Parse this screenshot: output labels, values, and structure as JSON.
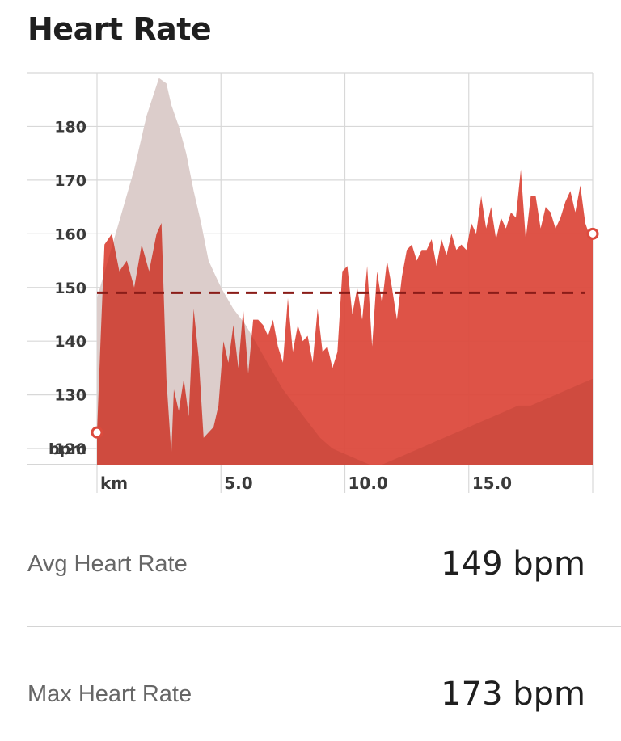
{
  "title": "Heart Rate",
  "stats": {
    "avg_label": "Avg Heart Rate",
    "avg_value": "149 bpm",
    "max_label": "Max Heart Rate",
    "max_value": "173 bpm"
  },
  "colors": {
    "hr_fill": "#dc4a3d",
    "elevation_fill": "#ececec",
    "avg_line": "#8a1c18",
    "grid": "#d8d8d8"
  },
  "chart_data": {
    "type": "area",
    "xlabel": "km",
    "ylabel": "bpm",
    "x_ticks": [
      "5.0",
      "10.0",
      "15.0"
    ],
    "y_ticks": [
      "180",
      "170",
      "160",
      "150",
      "140",
      "130",
      "120"
    ],
    "xlim": [
      0,
      20
    ],
    "ylim": [
      117,
      190
    ],
    "avg_line": 149,
    "series": [
      {
        "role": "heart_rate",
        "x": [
          0,
          0.15,
          0.3,
          0.6,
          0.9,
          1.2,
          1.5,
          1.8,
          2.1,
          2.4,
          2.6,
          2.8,
          3.0,
          3.1,
          3.3,
          3.5,
          3.7,
          3.9,
          4.1,
          4.3,
          4.5,
          4.7,
          4.9,
          5.1,
          5.3,
          5.5,
          5.7,
          5.9,
          6.1,
          6.3,
          6.5,
          6.7,
          6.9,
          7.1,
          7.3,
          7.5,
          7.7,
          7.9,
          8.1,
          8.3,
          8.5,
          8.7,
          8.9,
          9.1,
          9.3,
          9.5,
          9.7,
          9.9,
          10.1,
          10.3,
          10.5,
          10.7,
          10.9,
          11.1,
          11.3,
          11.5,
          11.7,
          11.9,
          12.1,
          12.3,
          12.5,
          12.7,
          12.9,
          13.1,
          13.3,
          13.5,
          13.7,
          13.9,
          14.1,
          14.3,
          14.5,
          14.7,
          14.9,
          15.1,
          15.3,
          15.5,
          15.7,
          15.9,
          16.1,
          16.3,
          16.5,
          16.7,
          16.9,
          17.1,
          17.3,
          17.5,
          17.7,
          17.9,
          18.1,
          18.3,
          18.5,
          18.7,
          18.9,
          19.1,
          19.3,
          19.5,
          19.7,
          19.85,
          20
        ],
        "values": [
          123,
          141,
          158,
          160,
          153,
          155,
          150,
          158,
          153,
          160,
          162,
          133,
          119,
          131,
          127,
          133,
          126,
          146,
          137,
          122,
          123,
          124,
          128,
          140,
          136,
          143,
          135,
          146,
          134,
          144,
          144,
          143,
          141,
          144,
          139,
          136,
          148,
          138,
          143,
          140,
          141,
          136,
          146,
          138,
          139,
          135,
          138,
          153,
          154,
          145,
          150,
          144,
          154,
          139,
          153,
          147,
          155,
          150,
          144,
          152,
          157,
          158,
          155,
          157,
          157,
          159,
          154,
          159,
          156,
          160,
          157,
          158,
          157,
          162,
          160,
          167,
          161,
          165,
          159,
          163,
          161,
          164,
          163,
          172,
          159,
          167,
          167,
          161,
          165,
          164,
          161,
          163,
          166,
          168,
          164,
          169,
          162,
          160,
          160
        ]
      },
      {
        "role": "elevation",
        "x": [
          0,
          0.5,
          1.0,
          1.5,
          2.0,
          2.5,
          2.8,
          3.0,
          3.3,
          3.6,
          3.9,
          4.2,
          4.5,
          4.8,
          5.0,
          5.5,
          6.0,
          6.5,
          7.0,
          7.5,
          8.0,
          8.5,
          9.0,
          9.5,
          10.0,
          10.5,
          11.0,
          11.5,
          12.0,
          12.5,
          13.0,
          13.5,
          14.0,
          14.5,
          15.0,
          15.5,
          16.0,
          16.5,
          17.0,
          17.5,
          18.0,
          18.5,
          19.0,
          19.5,
          20
        ],
        "values": [
          148,
          156,
          164,
          172,
          182,
          189,
          188,
          184,
          180,
          175,
          168,
          162,
          155,
          152,
          150,
          146,
          143,
          139,
          135,
          131,
          128,
          125,
          122,
          120,
          119,
          118,
          117,
          117,
          118,
          119,
          120,
          121,
          122,
          123,
          124,
          125,
          126,
          127,
          128,
          128,
          129,
          130,
          131,
          132,
          133
        ]
      }
    ]
  }
}
